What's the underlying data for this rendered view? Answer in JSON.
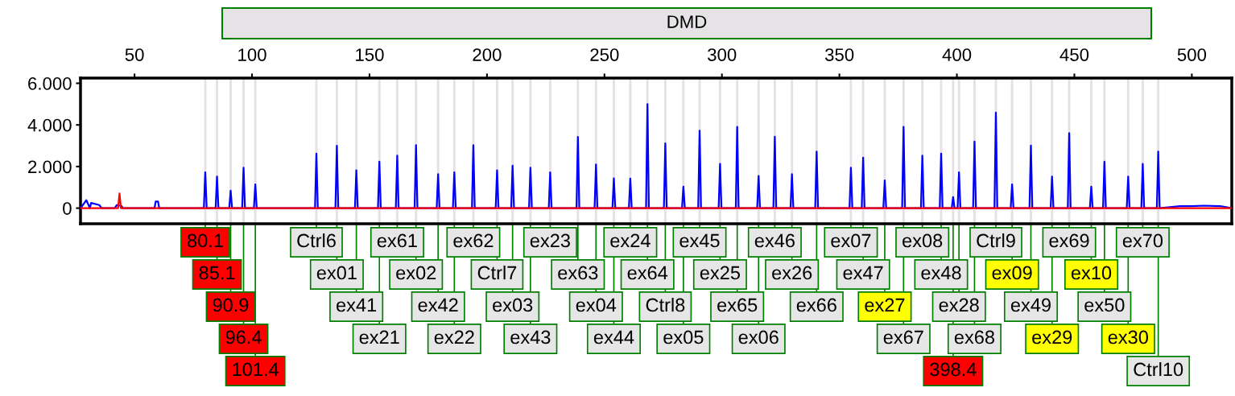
{
  "chart_data": {
    "type": "line",
    "title": "DMD",
    "xlim": [
      27,
      517
    ],
    "ylim": [
      -0.75,
      6.25
    ],
    "xticks": [
      50,
      100,
      150,
      200,
      250,
      300,
      350,
      400,
      450,
      500
    ],
    "yticks": [
      {
        "value": 0,
        "label": "0"
      },
      {
        "value": 2,
        "label": "2.000"
      },
      {
        "value": 4,
        "label": "4.000"
      },
      {
        "value": 6,
        "label": "6.000"
      }
    ],
    "marker": "none",
    "line_style": "solid",
    "colors": [
      "#ff0000",
      "#ff0000",
      "#ff0000",
      "#ff0000",
      "#ff0000",
      "#e6e6e6",
      "#e6e6e6",
      "#e6e6e6",
      "#e6e6e6",
      "#e6e6e6",
      "#e6e6e6",
      "#e6e6e6",
      "#e6e6e6",
      "#e6e6e6",
      "#e6e6e6",
      "#e6e6e6",
      "#e6e6e6",
      "#e6e6e6",
      "#e6e6e6",
      "#e6e6e6",
      "#e6e6e6",
      "#e6e6e6",
      "#e6e6e6",
      "#e6e6e6",
      "#e6e6e6",
      "#e6e6e6",
      "#e6e6e6",
      "#e6e6e6",
      "#e6e6e6",
      "#e6e6e6",
      "#e6e6e6",
      "#e6e6e6",
      "#e6e6e6",
      "#e6e6e6",
      "#ffff00",
      "#e6e6e6",
      "#e6e6e6",
      "#e6e6e6",
      "#ff0000",
      "#e6e6e6",
      "#e6e6e6",
      "#e6e6e6",
      "#ffff00",
      "#e6e6e6",
      "#ffff00",
      "#e6e6e6",
      "#ffff00",
      "#e6e6e6",
      "#ffff00",
      "#e6e6e6",
      "#e6e6e6"
    ],
    "series": [
      {
        "color": "#0000ff",
        "x": [
          27,
          29.5,
          31,
          31.5,
          35,
          36,
          41.5,
          42.5,
          44.5,
          45,
          58.5,
          59,
          60,
          60.5,
          79.5,
          80.1,
          80.7,
          84.5,
          85.1,
          85.7,
          90.3,
          90.9,
          91.5,
          95.8,
          96.4,
          97,
          100.8,
          101.4,
          102,
          126.8,
          127.4,
          128,
          135.5,
          136.1,
          136.7,
          143.8,
          144.4,
          145,
          153.6,
          154.2,
          154.8,
          161.2,
          161.8,
          162.4,
          169.2,
          169.8,
          170.4,
          178.6,
          179.2,
          179.8,
          185.5,
          186.1,
          186.7,
          193.6,
          194.2,
          194.8,
          203.7,
          204.3,
          204.9,
          210.3,
          210.9,
          211.5,
          217.9,
          218.5,
          219.1,
          226.3,
          226.9,
          227.5,
          238.1,
          238.7,
          239.3,
          245.8,
          246.4,
          247,
          253.4,
          254,
          254.6,
          260.4,
          261,
          261.6,
          267.7,
          268.3,
          268.9,
          275.3,
          275.9,
          276.5,
          283,
          283.6,
          284.2,
          289.9,
          290.5,
          291.1,
          298.6,
          299.2,
          299.8,
          305.9,
          306.5,
          307.1,
          315,
          315.6,
          316.2,
          321.9,
          322.5,
          323.1,
          329.2,
          329.8,
          330.4,
          339.7,
          340.3,
          340.9,
          354.3,
          354.9,
          355.5,
          359.5,
          360.1,
          360.7,
          368.7,
          369.3,
          369.9,
          376.7,
          377.3,
          377.9,
          384.7,
          385.3,
          385.9,
          392.7,
          393.3,
          393.9,
          397.8,
          398.4,
          399,
          400.3,
          400.9,
          401.5,
          406.9,
          407.5,
          408.1,
          416,
          416.6,
          417.2,
          422.9,
          423.5,
          424.1,
          430.9,
          431.5,
          432.1,
          439.9,
          440.5,
          441.1,
          447.2,
          447.8,
          448.4,
          456.6,
          457.2,
          457.8,
          462.2,
          462.8,
          463.4,
          472.3,
          472.9,
          473.5,
          478.5,
          479.1,
          479.7,
          485.1,
          485.7,
          486.3,
          495,
          500,
          505,
          512,
          517
        ],
        "values": [
          0,
          0.38,
          0,
          0.25,
          0.15,
          0,
          0,
          0.15,
          0.1,
          0,
          0,
          0.32,
          0.32,
          0,
          0,
          1.72,
          0,
          0,
          1.52,
          0,
          0,
          0.84,
          0,
          0,
          1.94,
          0,
          0,
          1.14,
          0,
          0,
          2.62,
          0,
          0,
          3.0,
          0,
          0,
          1.82,
          0,
          0,
          2.23,
          0,
          0,
          2.52,
          0,
          0,
          3.03,
          0,
          0,
          1.63,
          0,
          0,
          1.72,
          0,
          0,
          3.03,
          0,
          0,
          1.82,
          0,
          0,
          2.04,
          0,
          0,
          1.94,
          0,
          0,
          1.72,
          0,
          0,
          3.42,
          0,
          0,
          2.1,
          0,
          0,
          1.43,
          0,
          0,
          1.42,
          0,
          0,
          5.0,
          0,
          0,
          3.11,
          0,
          0,
          1.03,
          0,
          0,
          3.72,
          0,
          0,
          2.13,
          0,
          0,
          3.91,
          0,
          0,
          1.55,
          0,
          0,
          3.43,
          0,
          0,
          1.63,
          0,
          0,
          2.72,
          0,
          0,
          1.94,
          0,
          0,
          2.43,
          0,
          0,
          1.33,
          0,
          0,
          3.91,
          0,
          0,
          2.52,
          0,
          0,
          2.62,
          0,
          0,
          0.53,
          0,
          0,
          1.72,
          0,
          0,
          3.2,
          0,
          0,
          4.59,
          0,
          0,
          1.14,
          0,
          0,
          3.01,
          0,
          0,
          1.52,
          0,
          0,
          3.61,
          0,
          0,
          1.03,
          0,
          0,
          2.23,
          0,
          0,
          1.52,
          0,
          0,
          2.13,
          0,
          0,
          2.72,
          0,
          0.1,
          0.1,
          0.12,
          0.1,
          0
        ]
      },
      {
        "color": "#ff0000",
        "x": [
          27,
          43,
          43.6,
          44.2,
          517
        ],
        "values": [
          0,
          0,
          0.71,
          0,
          0
        ]
      }
    ],
    "bands": [
      {
        "axis": "x",
        "from": 79.6,
        "to": 80.6,
        "label": "80.1",
        "color": "#e4e0e4"
      },
      {
        "axis": "x",
        "from": 84.6,
        "to": 85.6,
        "label": "85.1",
        "color": "#e4e0e4"
      },
      {
        "axis": "x",
        "from": 90.4,
        "to": 91.4,
        "label": "90.9",
        "color": "#e4e0e4"
      },
      {
        "axis": "x",
        "from": 95.9,
        "to": 96.9,
        "label": "96.4",
        "color": "#e4e0e4"
      },
      {
        "axis": "x",
        "from": 100.9,
        "to": 101.9,
        "label": "101.4",
        "color": "#e4e0e4"
      },
      {
        "axis": "x",
        "from": 126.9,
        "to": 127.9,
        "label": "Ctrl6",
        "color": "#e4e0e4"
      },
      {
        "axis": "x",
        "from": 135.6,
        "to": 136.6,
        "label": "ex01",
        "color": "#e4e0e4"
      },
      {
        "axis": "x",
        "from": 143.9,
        "to": 144.9,
        "label": "ex41",
        "color": "#e4e0e4"
      },
      {
        "axis": "x",
        "from": 153.7,
        "to": 154.7,
        "label": "ex21",
        "color": "#e4e0e4"
      },
      {
        "axis": "x",
        "from": 161.3,
        "to": 162.3,
        "label": "ex61",
        "color": "#e4e0e4"
      },
      {
        "axis": "x",
        "from": 169.3,
        "to": 170.3,
        "label": "ex02",
        "color": "#e4e0e4"
      },
      {
        "axis": "x",
        "from": 178.7,
        "to": 179.7,
        "label": "ex42",
        "color": "#e4e0e4"
      },
      {
        "axis": "x",
        "from": 185.6,
        "to": 186.6,
        "label": "ex22",
        "color": "#e4e0e4"
      },
      {
        "axis": "x",
        "from": 193.7,
        "to": 194.7,
        "label": "ex62",
        "color": "#e4e0e4"
      },
      {
        "axis": "x",
        "from": 203.8,
        "to": 204.8,
        "label": "Ctrl7",
        "color": "#e4e0e4"
      },
      {
        "axis": "x",
        "from": 210.4,
        "to": 211.4,
        "label": "ex03",
        "color": "#e4e0e4"
      },
      {
        "axis": "x",
        "from": 218,
        "to": 219,
        "label": "ex43",
        "color": "#e4e0e4"
      },
      {
        "axis": "x",
        "from": 226.4,
        "to": 227.4,
        "label": "ex23",
        "color": "#e4e0e4"
      },
      {
        "axis": "x",
        "from": 238.2,
        "to": 239.2,
        "label": "ex63",
        "color": "#e4e0e4"
      },
      {
        "axis": "x",
        "from": 245.9,
        "to": 246.9,
        "label": "ex04",
        "color": "#e4e0e4"
      },
      {
        "axis": "x",
        "from": 253.5,
        "to": 254.5,
        "label": "ex44",
        "color": "#e4e0e4"
      },
      {
        "axis": "x",
        "from": 260.5,
        "to": 261.5,
        "label": "ex24",
        "color": "#e4e0e4"
      },
      {
        "axis": "x",
        "from": 267.8,
        "to": 268.8,
        "label": "ex64",
        "color": "#e4e0e4"
      },
      {
        "axis": "x",
        "from": 275.4,
        "to": 276.4,
        "label": "Ctrl8",
        "color": "#e4e0e4"
      },
      {
        "axis": "x",
        "from": 283.1,
        "to": 284.1,
        "label": "ex05",
        "color": "#e4e0e4"
      },
      {
        "axis": "x",
        "from": 290,
        "to": 291,
        "label": "ex45",
        "color": "#e4e0e4"
      },
      {
        "axis": "x",
        "from": 298.7,
        "to": 299.7,
        "label": "ex25",
        "color": "#e4e0e4"
      },
      {
        "axis": "x",
        "from": 306,
        "to": 307,
        "label": "ex65",
        "color": "#e4e0e4"
      },
      {
        "axis": "x",
        "from": 315.1,
        "to": 316.1,
        "label": "ex06",
        "color": "#e4e0e4"
      },
      {
        "axis": "x",
        "from": 322,
        "to": 323,
        "label": "ex46",
        "color": "#e4e0e4"
      },
      {
        "axis": "x",
        "from": 329.3,
        "to": 330.3,
        "label": "ex26",
        "color": "#e4e0e4"
      },
      {
        "axis": "x",
        "from": 339.8,
        "to": 340.8,
        "label": "ex66",
        "color": "#e4e0e4"
      },
      {
        "axis": "x",
        "from": 354.4,
        "to": 355.4,
        "label": "ex07",
        "color": "#e4e0e4"
      },
      {
        "axis": "x",
        "from": 359.6,
        "to": 360.6,
        "label": "ex47",
        "color": "#e4e0e4"
      },
      {
        "axis": "x",
        "from": 368.8,
        "to": 369.8,
        "label": "ex27",
        "color": "#e4e0e4"
      },
      {
        "axis": "x",
        "from": 376.8,
        "to": 377.8,
        "label": "ex67",
        "color": "#e4e0e4"
      },
      {
        "axis": "x",
        "from": 384.8,
        "to": 385.8,
        "label": "ex08",
        "color": "#e4e0e4"
      },
      {
        "axis": "x",
        "from": 392.8,
        "to": 393.8,
        "label": "ex48",
        "color": "#e4e0e4"
      },
      {
        "axis": "x",
        "from": 397.9,
        "to": 398.9,
        "label": "398.4",
        "color": "#e4e0e4"
      },
      {
        "axis": "x",
        "from": 400.4,
        "to": 401.4,
        "label": "ex28",
        "color": "#e4e0e4"
      },
      {
        "axis": "x",
        "from": 407,
        "to": 408,
        "label": "ex68",
        "color": "#e4e0e4"
      },
      {
        "axis": "x",
        "from": 416.1,
        "to": 417.1,
        "label": "Ctrl9",
        "color": "#e4e0e4"
      },
      {
        "axis": "x",
        "from": 423,
        "to": 424,
        "label": "ex09",
        "color": "#e4e0e4"
      },
      {
        "axis": "x",
        "from": 431,
        "to": 432,
        "label": "ex49",
        "color": "#e4e0e4"
      },
      {
        "axis": "x",
        "from": 440,
        "to": 441,
        "label": "ex29",
        "color": "#e4e0e4"
      },
      {
        "axis": "x",
        "from": 447.3,
        "to": 448.3,
        "label": "ex69",
        "color": "#e4e0e4"
      },
      {
        "axis": "x",
        "from": 456.7,
        "to": 457.7,
        "label": "ex10",
        "color": "#e4e0e4"
      },
      {
        "axis": "x",
        "from": 462.3,
        "to": 463.3,
        "label": "ex50",
        "color": "#e4e0e4"
      },
      {
        "axis": "x",
        "from": 472.4,
        "to": 473.4,
        "label": "ex30",
        "color": "#e4e0e4"
      },
      {
        "axis": "x",
        "from": 478.6,
        "to": 479.6,
        "label": "ex70",
        "color": "#e4e0e4"
      },
      {
        "axis": "x",
        "from": 485.2,
        "to": 486.2,
        "label": "Ctrl10",
        "color": "#e4e0e4"
      }
    ]
  }
}
